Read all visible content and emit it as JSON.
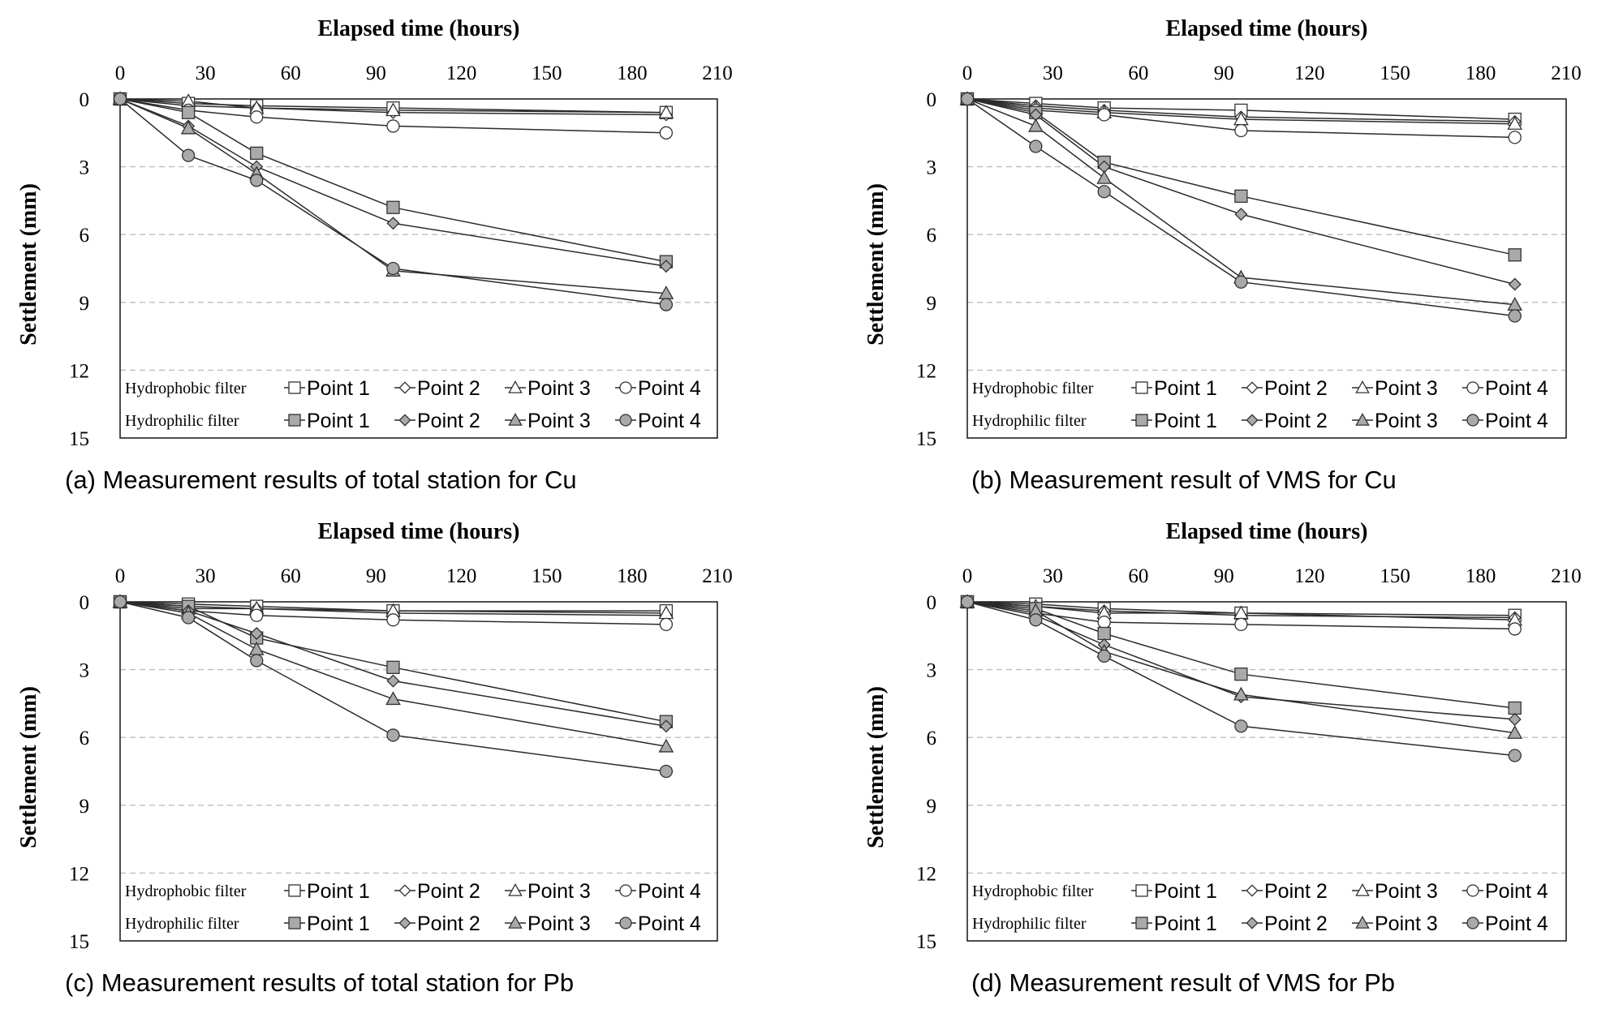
{
  "chart_data": [
    {
      "type": "line",
      "caption": "(a) Measurement results of total station for Cu",
      "xlabel": "Elapsed time (hours)",
      "ylabel": "Settlement (mm)",
      "xlim": [
        0,
        210
      ],
      "ylim": [
        0,
        15
      ],
      "x_ticks": [
        0,
        30,
        60,
        90,
        120,
        150,
        180,
        210
      ],
      "y_ticks": [
        0,
        3,
        6,
        9,
        12,
        15
      ],
      "y_inverted": true,
      "x_axis_position": "top",
      "grid": "horizontal dashed",
      "legend_position": "bottom",
      "x": [
        0,
        24,
        48,
        96,
        192
      ],
      "groups": [
        {
          "name": "Hydrophobic filter",
          "series": [
            {
              "name": "Point 1",
              "marker": "square",
              "filled": false,
              "values": [
                0,
                0.2,
                0.3,
                0.4,
                0.6
              ]
            },
            {
              "name": "Point 2",
              "marker": "diamond",
              "filled": false,
              "values": [
                0,
                0.3,
                0.4,
                0.6,
                0.7
              ]
            },
            {
              "name": "Point 3",
              "marker": "triangle",
              "filled": false,
              "values": [
                0,
                0.1,
                0.4,
                0.5,
                0.6
              ]
            },
            {
              "name": "Point 4",
              "marker": "circle",
              "filled": false,
              "values": [
                0,
                0.5,
                0.8,
                1.2,
                1.5
              ]
            }
          ]
        },
        {
          "name": "Hydrophilic filter",
          "series": [
            {
              "name": "Point 1",
              "marker": "square",
              "filled": true,
              "values": [
                0,
                0.6,
                2.4,
                4.8,
                7.2
              ]
            },
            {
              "name": "Point 2",
              "marker": "diamond",
              "filled": true,
              "values": [
                0,
                1.2,
                3.0,
                5.5,
                7.4
              ]
            },
            {
              "name": "Point 3",
              "marker": "triangle",
              "filled": true,
              "values": [
                0,
                1.3,
                3.3,
                7.6,
                8.6
              ]
            },
            {
              "name": "Point 4",
              "marker": "circle",
              "filled": true,
              "values": [
                0,
                2.5,
                3.6,
                7.5,
                9.1
              ]
            }
          ]
        }
      ]
    },
    {
      "type": "line",
      "caption": "(b) Measurement result of VMS for Cu",
      "xlabel": "Elapsed time (hours)",
      "ylabel": "Settlement (mm)",
      "xlim": [
        0,
        210
      ],
      "ylim": [
        0,
        15
      ],
      "x_ticks": [
        0,
        30,
        60,
        90,
        120,
        150,
        180,
        210
      ],
      "y_ticks": [
        0,
        3,
        6,
        9,
        12,
        15
      ],
      "y_inverted": true,
      "x_axis_position": "top",
      "grid": "horizontal dashed",
      "legend_position": "bottom",
      "x": [
        0,
        24,
        48,
        96,
        192
      ],
      "groups": [
        {
          "name": "Hydrophobic filter",
          "series": [
            {
              "name": "Point 1",
              "marker": "square",
              "filled": false,
              "values": [
                0,
                0.2,
                0.4,
                0.5,
                0.9
              ]
            },
            {
              "name": "Point 2",
              "marker": "diamond",
              "filled": false,
              "values": [
                0,
                0.3,
                0.5,
                0.8,
                1.0
              ]
            },
            {
              "name": "Point 3",
              "marker": "triangle",
              "filled": false,
              "values": [
                0,
                0.4,
                0.6,
                0.9,
                1.1
              ]
            },
            {
              "name": "Point 4",
              "marker": "circle",
              "filled": false,
              "values": [
                0,
                0.5,
                0.7,
                1.4,
                1.7
              ]
            }
          ]
        },
        {
          "name": "Hydrophilic filter",
          "series": [
            {
              "name": "Point 1",
              "marker": "square",
              "filled": true,
              "values": [
                0,
                0.6,
                2.8,
                4.3,
                6.9
              ]
            },
            {
              "name": "Point 2",
              "marker": "diamond",
              "filled": true,
              "values": [
                0,
                0.7,
                3.0,
                5.1,
                8.2
              ]
            },
            {
              "name": "Point 3",
              "marker": "triangle",
              "filled": true,
              "values": [
                0,
                1.2,
                3.5,
                7.9,
                9.1
              ]
            },
            {
              "name": "Point 4",
              "marker": "circle",
              "filled": true,
              "values": [
                0,
                2.1,
                4.1,
                8.1,
                9.6
              ]
            }
          ]
        }
      ]
    },
    {
      "type": "line",
      "caption": "(c) Measurement results of total station for Pb",
      "xlabel": "Elapsed time (hours)",
      "ylabel": "Settlement (mm)",
      "xlim": [
        0,
        210
      ],
      "ylim": [
        0,
        15
      ],
      "x_ticks": [
        0,
        30,
        60,
        90,
        120,
        150,
        180,
        210
      ],
      "y_ticks": [
        0,
        3,
        6,
        9,
        12,
        15
      ],
      "y_inverted": true,
      "x_axis_position": "top",
      "grid": "horizontal dashed",
      "legend_position": "bottom",
      "x": [
        0,
        24,
        48,
        96,
        192
      ],
      "groups": [
        {
          "name": "Hydrophobic filter",
          "series": [
            {
              "name": "Point 1",
              "marker": "square",
              "filled": false,
              "values": [
                0,
                0.1,
                0.2,
                0.4,
                0.4
              ]
            },
            {
              "name": "Point 2",
              "marker": "diamond",
              "filled": false,
              "values": [
                0,
                0.2,
                0.3,
                0.5,
                0.6
              ]
            },
            {
              "name": "Point 3",
              "marker": "triangle",
              "filled": false,
              "values": [
                0,
                0.3,
                0.3,
                0.4,
                0.5
              ]
            },
            {
              "name": "Point 4",
              "marker": "circle",
              "filled": false,
              "values": [
                0,
                0.4,
                0.6,
                0.8,
                1.0
              ]
            }
          ]
        },
        {
          "name": "Hydrophilic filter",
          "series": [
            {
              "name": "Point 1",
              "marker": "square",
              "filled": true,
              "values": [
                0,
                0.2,
                1.6,
                2.9,
                5.3
              ]
            },
            {
              "name": "Point 2",
              "marker": "diamond",
              "filled": true,
              "values": [
                0,
                0.4,
                1.4,
                3.5,
                5.5
              ]
            },
            {
              "name": "Point 3",
              "marker": "triangle",
              "filled": true,
              "values": [
                0,
                0.5,
                2.1,
                4.3,
                6.4
              ]
            },
            {
              "name": "Point 4",
              "marker": "circle",
              "filled": true,
              "values": [
                0,
                0.7,
                2.6,
                5.9,
                7.5
              ]
            }
          ]
        }
      ]
    },
    {
      "type": "line",
      "caption": "(d) Measurement result of VMS for Pb",
      "xlabel": "Elapsed time (hours)",
      "ylabel": "Settlement (mm)",
      "xlim": [
        0,
        210
      ],
      "ylim": [
        0,
        15
      ],
      "x_ticks": [
        0,
        30,
        60,
        90,
        120,
        150,
        180,
        210
      ],
      "y_ticks": [
        0,
        3,
        6,
        9,
        12,
        15
      ],
      "y_inverted": true,
      "x_axis_position": "top",
      "grid": "horizontal dashed",
      "legend_position": "bottom",
      "x": [
        0,
        24,
        48,
        96,
        192
      ],
      "groups": [
        {
          "name": "Hydrophobic filter",
          "series": [
            {
              "name": "Point 1",
              "marker": "square",
              "filled": false,
              "values": [
                0,
                0.1,
                0.3,
                0.5,
                0.6
              ]
            },
            {
              "name": "Point 2",
              "marker": "diamond",
              "filled": false,
              "values": [
                0,
                0.2,
                0.4,
                0.6,
                0.7
              ]
            },
            {
              "name": "Point 3",
              "marker": "triangle",
              "filled": false,
              "values": [
                0,
                0.2,
                0.5,
                0.5,
                0.8
              ]
            },
            {
              "name": "Point 4",
              "marker": "circle",
              "filled": false,
              "values": [
                0,
                0.5,
                0.9,
                1.0,
                1.2
              ]
            }
          ]
        },
        {
          "name": "Hydrophilic filter",
          "series": [
            {
              "name": "Point 1",
              "marker": "square",
              "filled": true,
              "values": [
                0,
                0.3,
                1.4,
                3.2,
                4.7
              ]
            },
            {
              "name": "Point 2",
              "marker": "diamond",
              "filled": true,
              "values": [
                0,
                0.6,
                1.9,
                4.2,
                5.2
              ]
            },
            {
              "name": "Point 3",
              "marker": "triangle",
              "filled": true,
              "values": [
                0,
                0.4,
                2.2,
                4.1,
                5.8
              ]
            },
            {
              "name": "Point 4",
              "marker": "circle",
              "filled": true,
              "values": [
                0,
                0.8,
                2.4,
                5.5,
                6.8
              ]
            }
          ]
        }
      ]
    }
  ]
}
